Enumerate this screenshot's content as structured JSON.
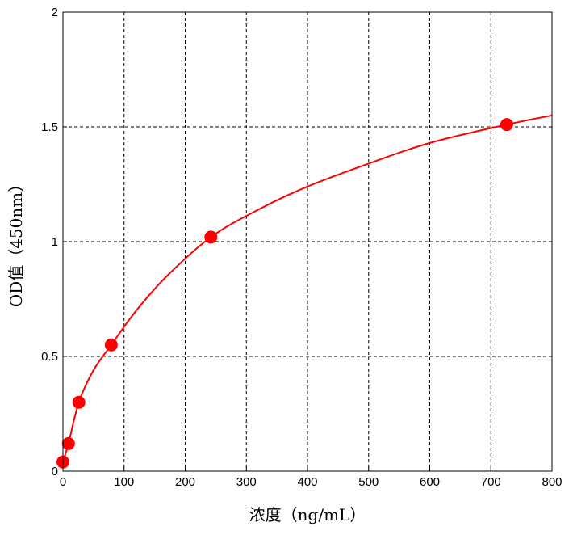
{
  "chart_data": {
    "type": "scatter",
    "title": "",
    "xlabel": "浓度（ng/mL）",
    "ylabel": "OD值（450nm）",
    "xlim": [
      0,
      800
    ],
    "ylim": [
      0,
      2
    ],
    "x_ticks": [
      0,
      100,
      200,
      300,
      400,
      500,
      600,
      700,
      800
    ],
    "y_ticks": [
      0,
      0.5,
      1,
      1.5,
      2
    ],
    "x_tick_labels": [
      "0",
      "100",
      "200",
      "300",
      "400",
      "500",
      "600",
      "700",
      "800"
    ],
    "y_tick_labels": [
      "0",
      "0.5",
      "1",
      "1.5",
      "2"
    ],
    "grid": true,
    "grid_style": "dashed",
    "series": [
      {
        "x": [
          0,
          9,
          26,
          79,
          242,
          726
        ],
        "y": [
          0.04,
          0.12,
          0.3,
          0.55,
          1.02,
          1.51
        ],
        "color": "#ff0000",
        "marker": "filled-circle"
      }
    ],
    "fit_curve": {
      "x": [
        0,
        9,
        26,
        50,
        79,
        120,
        170,
        242,
        320,
        400,
        500,
        600,
        726,
        800
      ],
      "y": [
        0.04,
        0.12,
        0.3,
        0.44,
        0.55,
        0.7,
        0.85,
        1.02,
        1.14,
        1.24,
        1.34,
        1.43,
        1.51,
        1.55
      ],
      "color": "#ff0000"
    }
  }
}
